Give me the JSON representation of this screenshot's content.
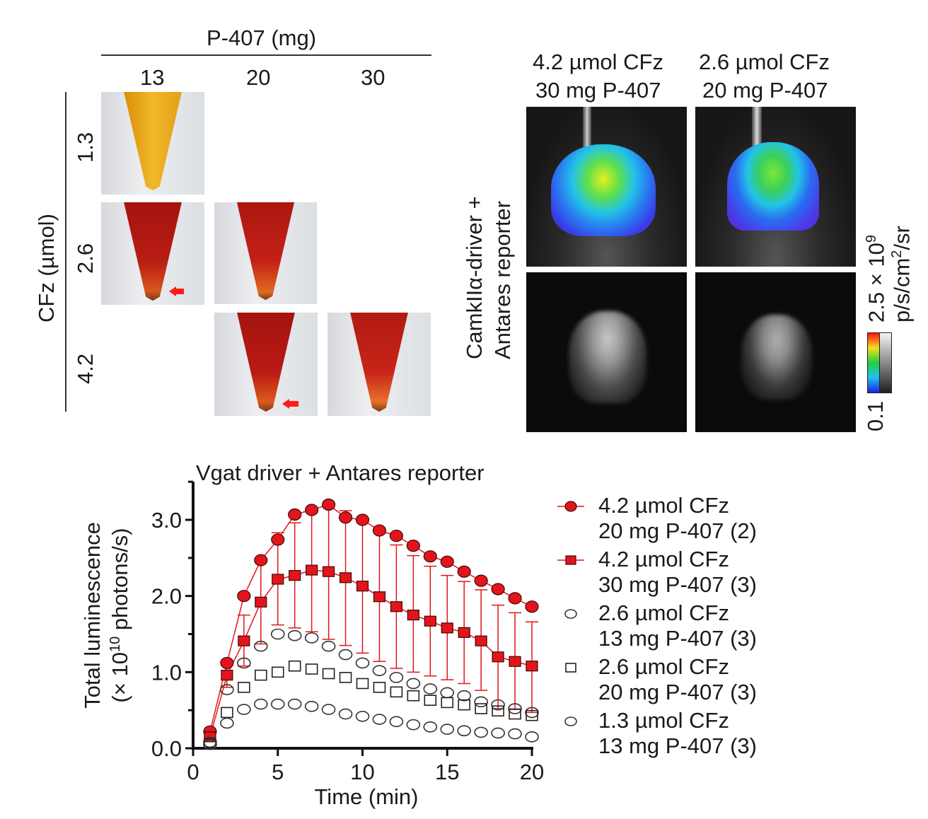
{
  "panel_a": {
    "column_header": "P-407 (mg)",
    "columns": [
      "13",
      "20",
      "30"
    ],
    "row_header": "CFz (µmol)",
    "rows": [
      "1.3",
      "2.6",
      "4.2"
    ],
    "tubes": [
      {
        "row": "1.3",
        "col": "13",
        "liquid_color": "#e9a514",
        "arrow": false
      },
      {
        "row": "2.6",
        "col": "13",
        "liquid_color": "#b51a14",
        "arrow": true
      },
      {
        "row": "2.6",
        "col": "20",
        "liquid_color": "#bf1d16",
        "arrow": false
      },
      {
        "row": "4.2",
        "col": "20",
        "liquid_color": "#b81a14",
        "arrow": true
      },
      {
        "row": "4.2",
        "col": "30",
        "liquid_color": "#c42017",
        "arrow": false
      }
    ],
    "arrow_color": "#ff1a1a"
  },
  "panel_b": {
    "columns": [
      {
        "line1": "4.2 µmol CFz",
        "line2": "30 mg P-407"
      },
      {
        "line1": "2.6 µmol CFz",
        "line2": "20 mg P-407"
      }
    ],
    "row_label_line1": "CamkIIα-driver +",
    "row_label_line2": "Antares reporter",
    "colorbar": {
      "max_label": "2.5 × 10",
      "max_exp": "9",
      "unit": "p/s/cm",
      "unit_exp": "2",
      "unit_suffix": "/sr",
      "min_label": "0.1"
    }
  },
  "chart_data": {
    "type": "scatter",
    "title": "Vgat driver + Antares reporter",
    "xlabel": "Time (min)",
    "ylabel_line1": "Total luminescence",
    "ylabel_line2_prefix": "(× 10",
    "ylabel_line2_exp": "10",
    "ylabel_line2_suffix": " photons/s)",
    "xlim": [
      0,
      20
    ],
    "ylim": [
      0,
      3.5
    ],
    "xticks": [
      "0",
      "5",
      "10",
      "15",
      "20"
    ],
    "xtick_values": [
      0,
      5,
      10,
      15,
      20
    ],
    "yticks": [
      "0.0",
      "1.0",
      "2.0",
      "3.0"
    ],
    "ytick_values": [
      0,
      1,
      2,
      3
    ],
    "yminor_values": [
      0.5,
      1.5,
      2.5,
      3.5
    ],
    "grid": false,
    "legend_position": "right",
    "x": [
      1,
      2,
      3,
      4,
      5,
      6,
      7,
      8,
      9,
      10,
      11,
      12,
      13,
      14,
      15,
      16,
      17,
      18,
      19,
      20
    ],
    "series": [
      {
        "name": "4.2 µmol CFz 20 mg P-407 (2)",
        "legend_line1": "4.2 µmol CFz",
        "legend_line2": "20 mg P-407 (2)",
        "marker": "circle",
        "filled": true,
        "line": true,
        "color": "#e3151b",
        "values": [
          0.22,
          1.12,
          2.0,
          2.47,
          2.74,
          3.07,
          3.13,
          3.2,
          3.03,
          3.0,
          2.86,
          2.79,
          2.66,
          2.52,
          2.45,
          2.32,
          2.2,
          2.09,
          1.97,
          1.86
        ]
      },
      {
        "name": "4.2 µmol CFz 30 mg P-407 (3)",
        "legend_line1": "4.2 µmol CFz",
        "legend_line2": "30 mg P-407 (3)",
        "marker": "square",
        "filled": true,
        "line": true,
        "color": "#e3151b",
        "values": [
          0.15,
          0.96,
          1.41,
          1.92,
          2.22,
          2.27,
          2.34,
          2.32,
          2.24,
          2.13,
          1.99,
          1.86,
          1.75,
          1.67,
          1.58,
          1.52,
          1.41,
          1.2,
          1.14,
          1.08
        ],
        "error_upper": [
          0.22,
          1.12,
          1.75,
          2.47,
          2.83,
          2.96,
          3.13,
          3.2,
          3.12,
          3.0,
          2.86,
          2.67,
          2.53,
          2.39,
          2.27,
          2.19,
          2.08,
          1.88,
          1.78,
          1.66
        ],
        "error_lower": [
          0.1,
          0.8,
          1.08,
          1.37,
          1.62,
          1.58,
          1.53,
          1.43,
          1.35,
          1.25,
          1.14,
          1.05,
          1.0,
          0.95,
          0.9,
          0.85,
          0.76,
          0.52,
          0.51,
          0.47
        ]
      },
      {
        "name": "2.6 µmol CFz 13 mg P-407 (3)",
        "legend_line1": "2.6 µmol CFz",
        "legend_line2": "13 mg P-407 (3)",
        "marker": "circle",
        "filled": false,
        "line": false,
        "color": "#333333",
        "values": [
          0.08,
          0.77,
          1.12,
          1.34,
          1.5,
          1.48,
          1.45,
          1.34,
          1.23,
          1.12,
          1.02,
          0.93,
          0.85,
          0.78,
          0.73,
          0.69,
          0.61,
          0.57,
          0.52,
          0.47
        ]
      },
      {
        "name": "2.6 µmol CFz 20 mg P-407 (3)",
        "legend_line1": "2.6 µmol CFz",
        "legend_line2": "20 mg P-407 (3)",
        "marker": "square",
        "filled": false,
        "line": false,
        "color": "#222222",
        "values": [
          0.06,
          0.47,
          0.8,
          0.96,
          1.0,
          1.08,
          1.04,
          0.98,
          0.93,
          0.85,
          0.8,
          0.74,
          0.69,
          0.63,
          0.6,
          0.57,
          0.52,
          0.49,
          0.45,
          0.43
        ]
      },
      {
        "name": "1.3 µmol CFz 13 mg P-407 (3)",
        "legend_line1": "1.3 µmol CFz",
        "legend_line2": "13 mg P-407 (3)",
        "marker": "circle",
        "filled": false,
        "line": false,
        "color": "#333333",
        "values": [
          0.05,
          0.33,
          0.51,
          0.58,
          0.58,
          0.58,
          0.55,
          0.51,
          0.45,
          0.42,
          0.38,
          0.35,
          0.31,
          0.28,
          0.25,
          0.23,
          0.21,
          0.2,
          0.19,
          0.15
        ]
      }
    ]
  }
}
